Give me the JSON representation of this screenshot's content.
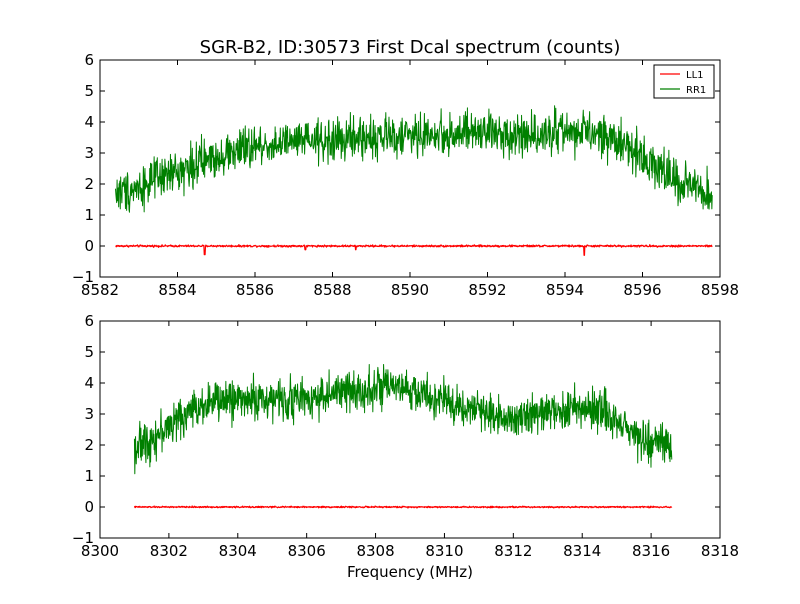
{
  "chart_data": [
    {
      "type": "line",
      "title": "SGR-B2, ID:30573 First Dcal spectrum (counts)",
      "xlabel": "",
      "ylabel": "",
      "xlim": [
        8582,
        8598
      ],
      "ylim": [
        -1,
        6
      ],
      "xticks": [
        8582,
        8584,
        8586,
        8588,
        8590,
        8592,
        8594,
        8596,
        8598
      ],
      "yticks": [
        -1,
        0,
        1,
        2,
        3,
        4,
        5,
        6
      ],
      "xtick_labels": [
        "8582",
        "8584",
        "8586",
        "8588",
        "8590",
        "8592",
        "8594",
        "8596",
        "8598"
      ],
      "ytick_labels": [
        "−1",
        "0",
        "1",
        "2",
        "3",
        "4",
        "5",
        "6"
      ],
      "grid": false,
      "legend_position": "top-right",
      "series": [
        {
          "name": "LL1",
          "color": "#ff0000",
          "x_range": [
            8582.4,
            8597.8
          ],
          "envelope_x": [
            8582.4,
            8597.8
          ],
          "envelope_y": [
            0.0,
            0.0
          ],
          "noise": 0.02,
          "dips": [
            [
              8584.7,
              -0.28
            ],
            [
              8587.3,
              -0.12
            ],
            [
              8588.6,
              -0.12
            ],
            [
              8594.5,
              -0.3
            ]
          ]
        },
        {
          "name": "RR1",
          "color": "#008000",
          "x_range": [
            8582.4,
            8597.8
          ],
          "envelope_x": [
            8582.4,
            8583.0,
            8584.0,
            8585.0,
            8586.0,
            8587.0,
            8588.0,
            8589.0,
            8590.0,
            8591.0,
            8592.0,
            8593.0,
            8594.0,
            8595.0,
            8595.5,
            8596.0,
            8596.5,
            8597.0,
            8597.8
          ],
          "envelope_y": [
            1.7,
            1.9,
            2.4,
            2.9,
            3.2,
            3.35,
            3.4,
            3.5,
            3.55,
            3.6,
            3.65,
            3.6,
            3.7,
            3.55,
            3.3,
            2.9,
            2.45,
            2.0,
            1.6
          ],
          "noise": 0.42
        }
      ]
    },
    {
      "type": "line",
      "title": "",
      "xlabel": "Frequency (MHz)",
      "ylabel": "",
      "xlim": [
        8300,
        8318
      ],
      "ylim": [
        -1,
        6
      ],
      "xticks": [
        8300,
        8302,
        8304,
        8306,
        8308,
        8310,
        8312,
        8314,
        8316,
        8318
      ],
      "yticks": [
        -1,
        0,
        1,
        2,
        3,
        4,
        5,
        6
      ],
      "xtick_labels": [
        "8300",
        "8302",
        "8304",
        "8306",
        "8308",
        "8310",
        "8312",
        "8314",
        "8316",
        "8318"
      ],
      "ytick_labels": [
        "−1",
        "0",
        "1",
        "2",
        "3",
        "4",
        "5",
        "6"
      ],
      "grid": false,
      "series": [
        {
          "name": "LL1",
          "color": "#ff0000",
          "x_range": [
            8301.0,
            8316.6
          ],
          "envelope_x": [
            8301.0,
            8316.6
          ],
          "envelope_y": [
            0.0,
            0.0
          ],
          "noise": 0.015,
          "dips": []
        },
        {
          "name": "RR1",
          "color": "#008000",
          "x_range": [
            8301.0,
            8316.6
          ],
          "envelope_x": [
            8301.0,
            8301.5,
            8302.0,
            8302.5,
            8303.0,
            8304.0,
            8305.0,
            8306.0,
            8307.0,
            8308.0,
            8309.0,
            8310.0,
            8311.0,
            8312.0,
            8313.0,
            8314.0,
            8314.5,
            8315.0,
            8315.5,
            8316.0,
            8316.6
          ],
          "envelope_y": [
            1.9,
            2.2,
            2.6,
            3.0,
            3.35,
            3.5,
            3.45,
            3.5,
            3.7,
            3.85,
            3.75,
            3.4,
            3.1,
            2.9,
            3.05,
            3.25,
            3.1,
            2.8,
            2.4,
            2.1,
            1.9
          ],
          "noise": 0.4
        }
      ]
    }
  ]
}
